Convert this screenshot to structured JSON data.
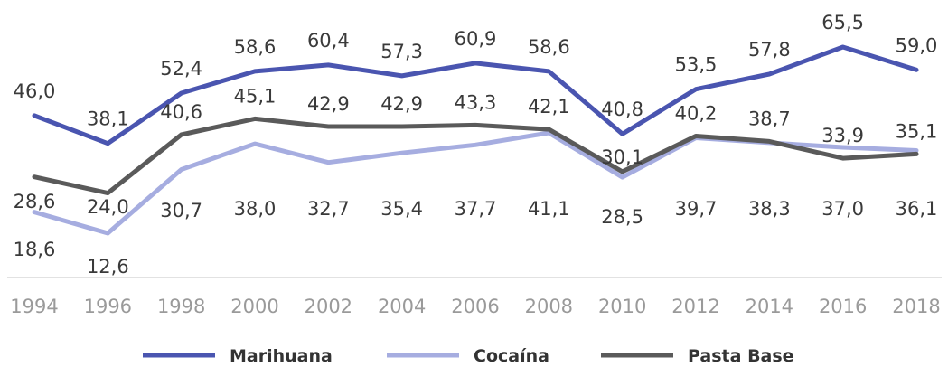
{
  "chart_data": {
    "type": "line",
    "x": [
      "1994",
      "1996",
      "1998",
      "2000",
      "2002",
      "2004",
      "2006",
      "2008",
      "2010",
      "2012",
      "2014",
      "2016",
      "2018"
    ],
    "ylim": [
      0,
      70
    ],
    "grid": false,
    "legend_position": "bottom",
    "series": [
      {
        "name": "Marihuana",
        "color": "#4a55b0",
        "values": [
          46.0,
          38.1,
          52.4,
          58.6,
          60.4,
          57.3,
          60.9,
          58.6,
          40.8,
          53.5,
          57.8,
          65.5,
          59.0
        ],
        "labels": [
          "46,0",
          "38,1",
          "52,4",
          "58,6",
          "60,4",
          "57,3",
          "60,9",
          "58,6",
          "40,8",
          "53,5",
          "57,8",
          "65,5",
          "59,0"
        ]
      },
      {
        "name": "Cocaína",
        "color": "#a6ade0",
        "values": [
          18.6,
          12.6,
          30.7,
          38.0,
          32.7,
          35.4,
          37.7,
          41.1,
          28.5,
          39.7,
          38.3,
          37.0,
          36.1
        ],
        "labels": [
          "18,6",
          "12,6",
          "30,7",
          "38,0",
          "32,7",
          "35,4",
          "37,7",
          "41,1",
          "28,5",
          "39,7",
          "38,3",
          "37,0",
          "36,1"
        ]
      },
      {
        "name": "Pasta Base",
        "color": "#5a5a5a",
        "values": [
          28.6,
          24.0,
          40.6,
          45.1,
          42.9,
          42.9,
          43.3,
          42.1,
          30.1,
          40.2,
          38.7,
          33.9,
          35.1
        ],
        "labels": [
          "28,6",
          "24,0",
          "40,6",
          "45,1",
          "42,9",
          "42,9",
          "43,3",
          "42,1",
          "30,1",
          "40,2",
          "38,7",
          "33,9",
          "35,1"
        ]
      }
    ]
  }
}
